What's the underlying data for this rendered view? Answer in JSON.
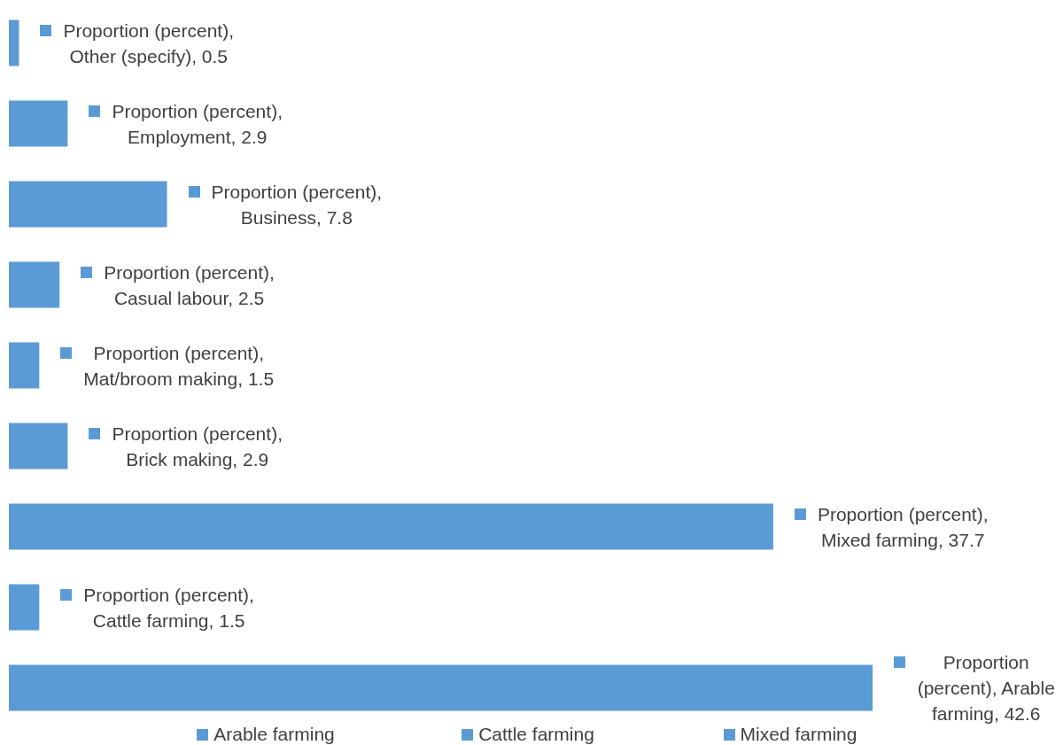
{
  "chart_data": {
    "type": "bar",
    "orientation": "horizontal",
    "categories": [
      null,
      null,
      null,
      null,
      null,
      null,
      null,
      null,
      null
    ],
    "values": [
      0.5,
      2.9,
      7.8,
      2.5,
      1.5,
      2.9,
      37.7,
      1.5,
      42.6
    ],
    "colors": [
      "#5b9bd5",
      "#5b9bd5",
      "#5b9bd5",
      "#5b9bd5",
      "#5b9bd5",
      "#5b9bd5",
      "#5b9bd5",
      "#5b9bd5",
      "#5b9bd5"
    ],
    "value_labels": [
      "Proportion (percent), Other (specify), 0.5",
      "Proportion (percent), Employment, 2.9",
      "Proportion (percent), Business, 7.8",
      "Proportion (percent), Casual labour, 2.5",
      "Proportion (percent), Mat/broom making, 1.5",
      "Proportion (percent), Brick making, 2.9",
      "Proportion (percent), Mixed farming, 37.7",
      "Proportion (percent), Cattle farming, 1.5",
      "Proportion (percent), Arable farming, 42.6"
    ],
    "annotations": [
      "Arable farming",
      "Cattle farming",
      "Mixed farming"
    ],
    "tick_labels": false
  }
}
